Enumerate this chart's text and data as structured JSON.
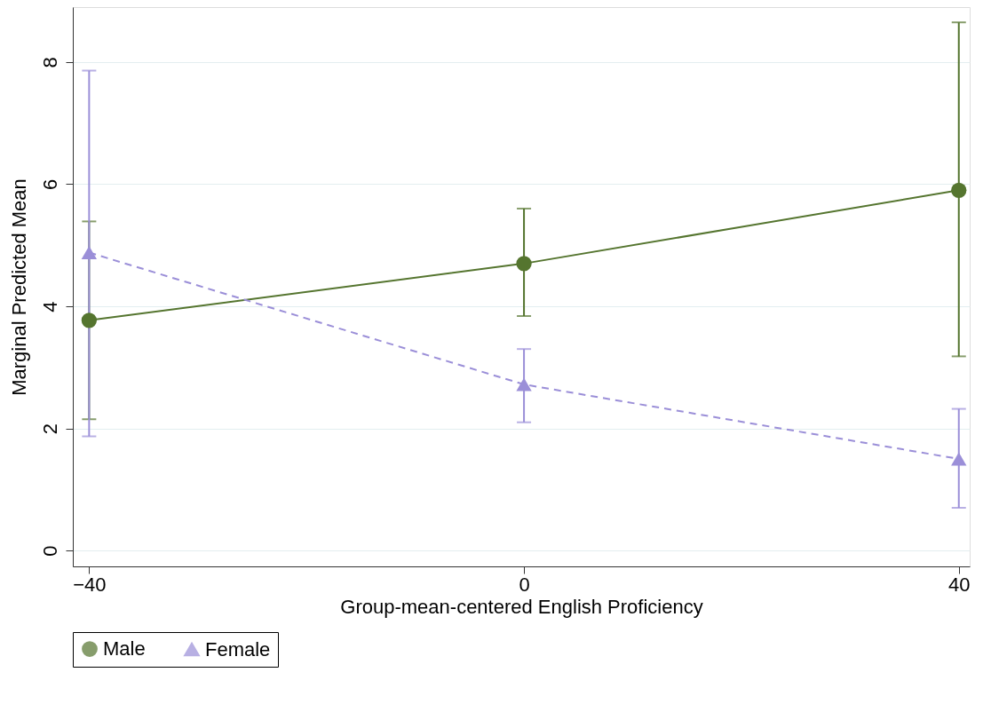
{
  "chart_data": {
    "type": "line",
    "xlabel": "Group-mean-centered English Proficiency",
    "ylabel": "Marginal Predicted Mean",
    "x": [
      -40,
      0,
      40
    ],
    "xlim": [
      -41.5,
      41
    ],
    "xticks": [
      -40,
      0,
      40
    ],
    "ylim": [
      -0.26,
      8.9
    ],
    "yticks": [
      0,
      2,
      4,
      6,
      8
    ],
    "grid": "y",
    "legend": "bottom",
    "series": [
      {
        "name": "Male",
        "color": "#55752f",
        "marker": "circle",
        "line_style": "solid",
        "values": [
          3.77,
          4.7,
          5.9
        ],
        "errors": [
          [
            2.15,
            5.39
          ],
          [
            3.84,
            5.6
          ],
          [
            3.18,
            8.65
          ]
        ]
      },
      {
        "name": "Female",
        "color": "#9b8fd8",
        "marker": "triangle",
        "line_style": "dashed",
        "values": [
          4.88,
          2.72,
          1.5
        ],
        "errors": [
          [
            1.87,
            7.86
          ],
          [
            2.1,
            3.3
          ],
          [
            0.7,
            2.32
          ]
        ]
      }
    ]
  }
}
